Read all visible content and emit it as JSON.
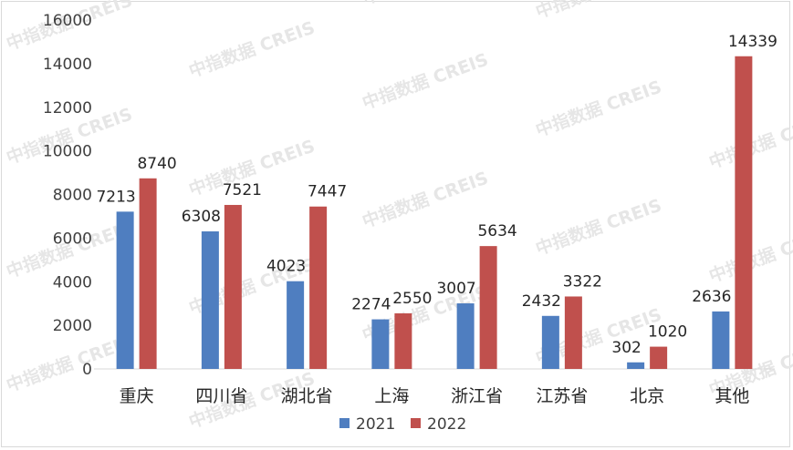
{
  "watermark": "中指数据 CREIS",
  "chart_data": {
    "type": "bar",
    "title": "",
    "xlabel": "",
    "ylabel": "",
    "ylim": [
      0,
      16000
    ],
    "yticks": [
      0,
      2000,
      4000,
      6000,
      8000,
      10000,
      12000,
      14000,
      16000
    ],
    "grid": false,
    "legend_position": "bottom",
    "categories": [
      "重庆",
      "四川省",
      "湖北省",
      "上海",
      "浙江省",
      "江苏省",
      "北京",
      "其他"
    ],
    "series": [
      {
        "name": "2021",
        "color": "#4f7ec0",
        "values": [
          7213,
          6308,
          4023,
          2274,
          3007,
          2432,
          302,
          2636
        ]
      },
      {
        "name": "2022",
        "color": "#c0504d",
        "values": [
          8740,
          7521,
          7447,
          2550,
          5634,
          3322,
          1020,
          14339
        ]
      }
    ]
  }
}
